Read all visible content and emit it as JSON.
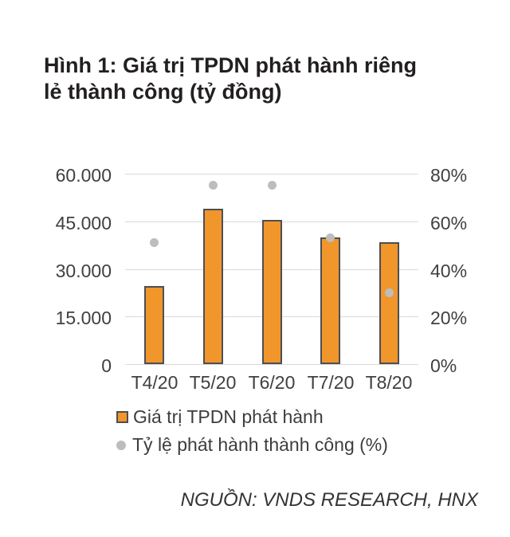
{
  "title": "Hình 1: Giá trị TPDN phát hành riêng lẻ thành công (tỷ đồng)",
  "source": "NGUỒN: VNDS RESEARCH, HNX",
  "legend": [
    {
      "label": "Giá trị TPDN phát hành",
      "marker": "square",
      "color": "#f0962b"
    },
    {
      "label": "Tỷ lệ phát hành thành công (%)",
      "marker": "circle",
      "color": "#bdbdbd"
    }
  ],
  "colors": {
    "bar_fill": "#f0962b",
    "bar_border": "#4d4e53",
    "dot": "#bdbdbd",
    "gridline": "#d9d9d9",
    "axis_text": "#404040"
  },
  "chart_data": {
    "type": "bar",
    "title": "Giá trị TPDN phát hành riêng lẻ thành công (tỷ đồng)",
    "categories": [
      "T4/20",
      "T5/20",
      "T6/20",
      "T7/20",
      "T8/20"
    ],
    "series": [
      {
        "name": "Giá trị TPDN phát hành",
        "type": "bar",
        "axis": "left",
        "values": [
          24500,
          49000,
          45500,
          40000,
          38300
        ]
      },
      {
        "name": "Tỷ lệ phát hành thành công (%)",
        "type": "scatter",
        "axis": "right",
        "values": [
          51,
          75,
          75,
          53,
          30
        ]
      }
    ],
    "left_axis": {
      "min": 0,
      "max": 60000,
      "tick_labels_top_down": [
        "60.000",
        "45.000",
        "30.000",
        "15.000",
        "0"
      ]
    },
    "right_axis": {
      "min": 0,
      "max": 80,
      "tick_labels_top_down": [
        "80%",
        "60%",
        "40%",
        "20%",
        "0%"
      ]
    },
    "grid": true,
    "legend_position": "bottom-left"
  }
}
